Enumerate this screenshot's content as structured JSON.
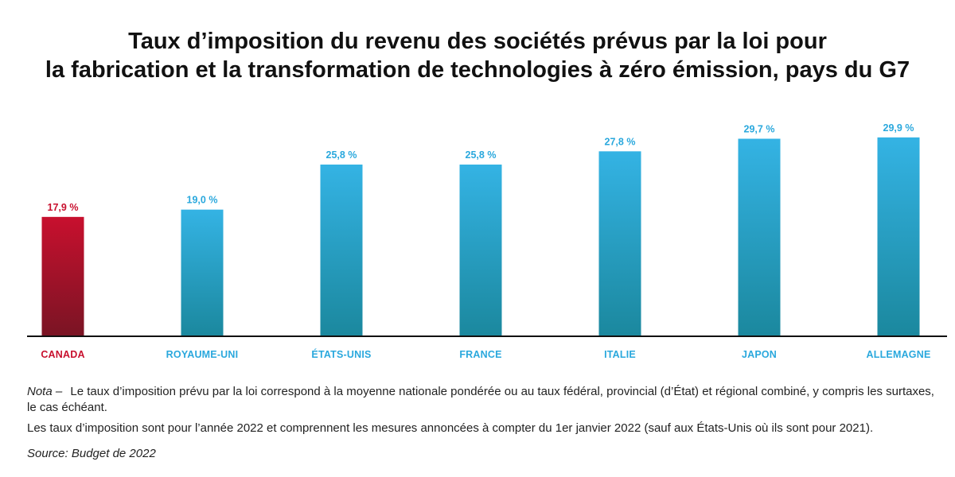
{
  "title": {
    "line1": "Taux d’imposition du revenu des sociétés prévus par la loi pour",
    "line2": "la fabrication et la transformation de technologies à zéro émission, pays du G7"
  },
  "chart_data": {
    "type": "bar",
    "title": "Taux d’imposition du revenu des sociétés prévus par la loi pour la fabrication et la transformation de technologies à zéro émission, pays du G7",
    "categories": [
      "CANADA",
      "ROYAUME-UNI",
      "ÉTATS-UNIS",
      "FRANCE",
      "ITALIE",
      "JAPON",
      "ALLEMAGNE"
    ],
    "values": [
      17.9,
      19.0,
      25.8,
      25.8,
      27.8,
      29.7,
      29.9
    ],
    "value_labels": [
      "17,9 %",
      "19,0 %",
      "25,8 %",
      "25,8 %",
      "27,8 %",
      "29,7 %",
      "29,9 %"
    ],
    "xlabel": "",
    "ylabel": "",
    "ylim": [
      0,
      30
    ],
    "grid": false,
    "legend": "none",
    "colors": {
      "highlight_top": "#c8102e",
      "highlight_bottom": "#7a1424",
      "bar_top": "#34b3e4",
      "bar_bottom": "#1b889e",
      "highlight_label": "#c8102e",
      "label": "#2aa8dd",
      "axis": "#111111"
    },
    "highlight_category": "CANADA"
  },
  "notes": {
    "nota_lead": "Nota –",
    "nota_text": "Le taux d’imposition prévu par la loi correspond à la moyenne nationale pondérée ou au taux fédéral, provincial (d’État) et régional combiné, y compris les surtaxes, le cas échéant.",
    "line2": "Les taux d’imposition sont pour l’année 2022 et comprennent les mesures annoncées à compter du 1er janvier 2022 (sauf aux États-Unis où ils sont pour 2021).",
    "source": "Source: Budget de 2022"
  }
}
